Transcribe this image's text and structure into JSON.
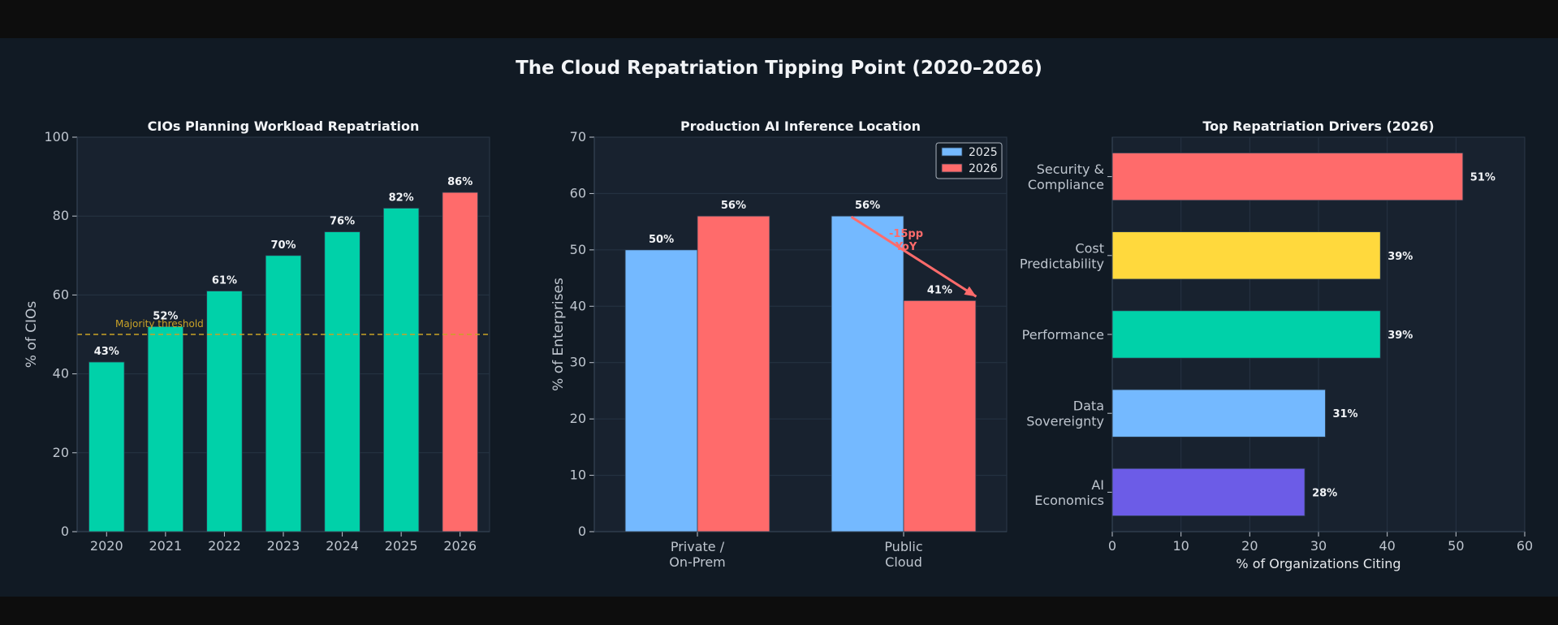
{
  "title": "The Cloud Repatriation Tipping Point (2020–2026)",
  "colors": {
    "teal": "#00d1a9",
    "coral": "#ff6b6b",
    "blue": "#74b9ff",
    "yellow": "#ffd93d",
    "purple": "#6c5ce7",
    "threshold": "#c9a227",
    "panel_bg": "#18222f",
    "text": "#e6e9ed"
  },
  "chart_data": [
    {
      "type": "bar",
      "title": "CIOs Planning Workload Repatriation",
      "ylabel": "% of CIOs",
      "xlabel": "",
      "ylim": [
        0,
        100
      ],
      "yticks": [
        0,
        20,
        40,
        60,
        80,
        100
      ],
      "grid": true,
      "categories": [
        "2020",
        "2021",
        "2022",
        "2023",
        "2024",
        "2025",
        "2026"
      ],
      "values": [
        43,
        52,
        61,
        70,
        76,
        82,
        86
      ],
      "value_labels": [
        "43%",
        "52%",
        "61%",
        "70%",
        "76%",
        "82%",
        "86%"
      ],
      "highlight": "2026",
      "reference_line": {
        "y": 50,
        "label": "Majority threshold"
      }
    },
    {
      "type": "bar",
      "title": "Production AI Inference Location",
      "ylabel": "% of Enterprises",
      "xlabel": "",
      "ylim": [
        0,
        70
      ],
      "yticks": [
        0,
        10,
        20,
        30,
        40,
        50,
        60,
        70
      ],
      "grid": true,
      "categories": [
        "Private /\nOn-Prem",
        "Public\nCloud"
      ],
      "category_lines": [
        [
          "Private /",
          "On-Prem"
        ],
        [
          "Public",
          "Cloud"
        ]
      ],
      "series": [
        {
          "name": "2025",
          "values": [
            50,
            56
          ],
          "value_labels": [
            "50%",
            "56%"
          ]
        },
        {
          "name": "2026",
          "values": [
            56,
            41
          ],
          "value_labels": [
            "56%",
            "41%"
          ]
        }
      ],
      "legend": "top-right",
      "annotation": {
        "lines": [
          "-15pp",
          "YoY"
        ],
        "from": [
          "Public\nCloud",
          56
        ],
        "to": [
          "Public\nCloud",
          41
        ]
      }
    },
    {
      "type": "bar",
      "orientation": "horizontal",
      "title": "Top Repatriation Drivers (2026)",
      "xlabel": "% of Organizations Citing",
      "ylabel": "",
      "xlim": [
        0,
        60
      ],
      "xticks": [
        0,
        10,
        20,
        30,
        40,
        50,
        60
      ],
      "grid": true,
      "categories": [
        [
          "Security &",
          "Compliance"
        ],
        [
          "Cost",
          "Predictability"
        ],
        [
          "Performance"
        ],
        [
          "Data",
          "Sovereignty"
        ],
        [
          "AI",
          "Economics"
        ]
      ],
      "values": [
        51,
        39,
        39,
        31,
        28
      ],
      "value_labels": [
        "51%",
        "39%",
        "39%",
        "31%",
        "28%"
      ]
    }
  ]
}
